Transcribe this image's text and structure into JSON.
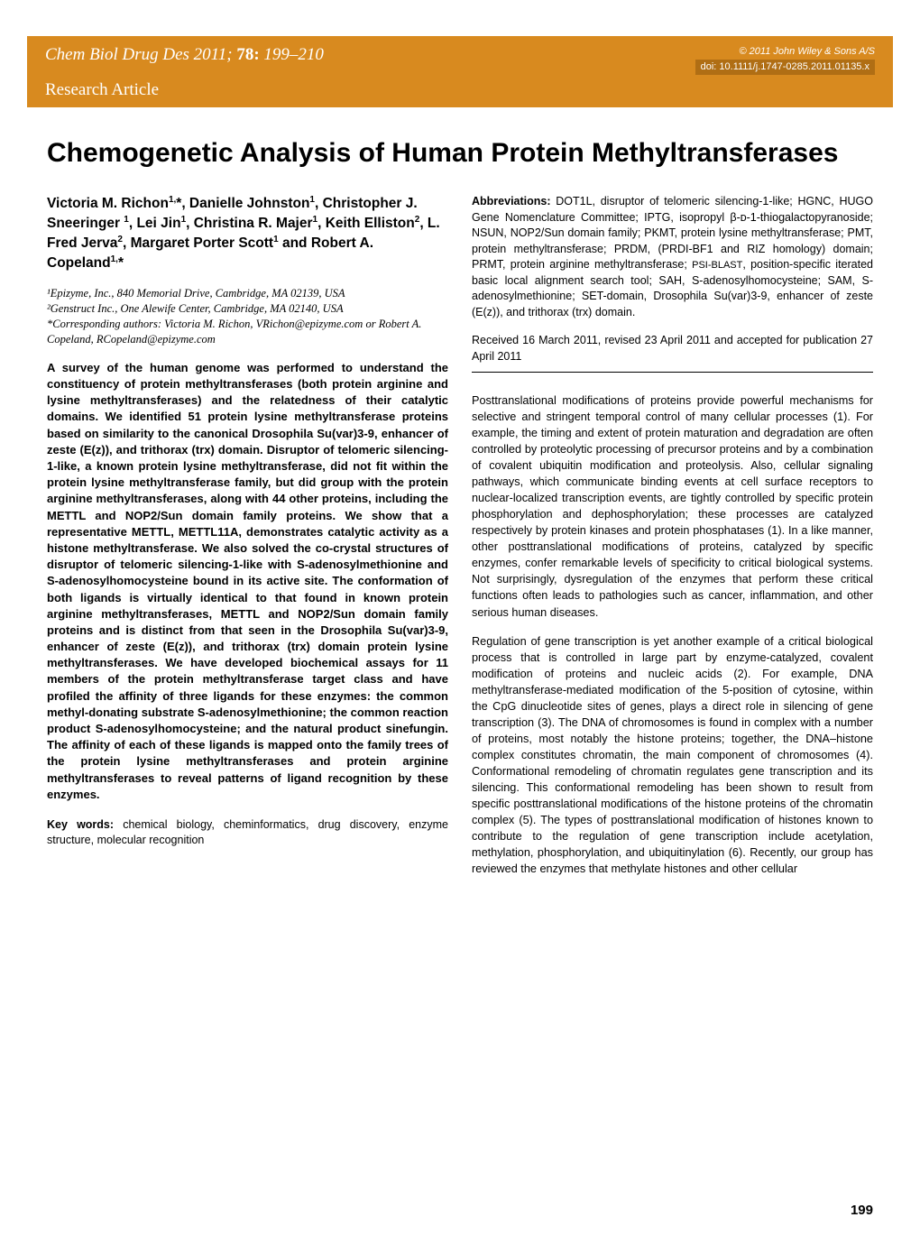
{
  "header": {
    "journal": "Chem Biol Drug Des 2011; ",
    "volume": "78:",
    "pages": " 199–210",
    "copyright": "© 2011 John Wiley & Sons A/S",
    "doi": "doi: 10.1111/j.1747-0285.2011.01135.x",
    "article_type": "Research Article",
    "band_color": "#d88a1f",
    "doi_bg_color": "#b06e14"
  },
  "title": "Chemogenetic Analysis of Human Protein Methyltransferases",
  "authors_html": "Victoria M. Richon<sup>1,</sup>*, Danielle Johnston<sup>1</sup>, Christopher J. Sneeringer <sup>1</sup>, Lei Jin<sup>1</sup>, Christina R. Majer<sup>1</sup>, Keith Elliston<sup>2</sup>, L. Fred Jerva<sup>2</sup>, Margaret Porter Scott<sup>1</sup> and Robert A. Copeland<sup>1,</sup>*",
  "affiliations": [
    "¹Epizyme, Inc., 840 Memorial Drive, Cambridge, MA 02139, USA",
    "²Genstruct Inc., One Alewife Center, Cambridge, MA 02140, USA",
    "*Corresponding authors: Victoria M. Richon, VRichon@epizyme.com or Robert A. Copeland, RCopeland@epizyme.com"
  ],
  "abstract": "A survey of the human genome was performed to understand the constituency of protein methyltransferases (both protein arginine and lysine methyltransferases) and the relatedness of their catalytic domains. We identified 51 protein lysine methyltransferase proteins based on similarity to the canonical Drosophila Su(var)3-9, enhancer of zeste (E(z)), and trithorax (trx) domain. Disruptor of telomeric silencing-1-like, a known protein lysine methyltransferase, did not fit within the protein lysine methyltransferase family, but did group with the protein arginine methyltransferases, along with 44 other proteins, including the METTL and NOP2/Sun domain family proteins. We show that a representative METTL, METTL11A, demonstrates catalytic activity as a histone methyltransferase. We also solved the co-crystal structures of disruptor of telomeric silencing-1-like with S-adenosylmethionine and S-adenosylhomocysteine bound in its active site. The conformation of both ligands is virtually identical to that found in known protein arginine methyltransferases, METTL and NOP2/Sun domain family proteins and is distinct from that seen in the Drosophila Su(var)3-9, enhancer of zeste (E(z)), and trithorax (trx) domain protein lysine methyltransferases. We have developed biochemical assays for 11 members of the protein methyltransferase target class and have profiled the affinity of three ligands for these enzymes: the common methyl-donating substrate S-adenosylmethionine; the common reaction product S-adenosylhomocysteine; and the natural product sinefungin. The affinity of each of these ligands is mapped onto the family trees of the protein lysine methyltransferases and protein arginine methyltransferases to reveal patterns of ligand recognition by these enzymes.",
  "keywords": {
    "label": "Key words:",
    "text": " chemical biology, cheminformatics, drug discovery, enzyme structure, molecular recognition"
  },
  "abbreviations": {
    "label": "Abbreviations:",
    "text": " DOT1L, disruptor of telomeric silencing-1-like; HGNC, HUGO Gene Nomenclature Committee; IPTG, isopropyl β-ᴅ-1-thiogalactopyranoside; NSUN, NOP2/Sun domain family; PKMT, protein lysine methyltransferase; PMT, protein methyltransferase; PRDM, (PRDI-BF1 and RIZ homology) domain; PRMT, protein arginine methyltransferase; PSI-BLAST, position-specific iterated basic local alignment search tool; SAH, S-adenosylhomocysteine; SAM, S-adenosylmethionine; SET-domain, Drosophila Su(var)3-9, enhancer of zeste (E(z)), and trithorax (trx) domain."
  },
  "received": "Received 16 March 2011, revised 23 April 2011 and accepted for publication 27 April 2011",
  "body_paragraphs": [
    "Posttranslational modifications of proteins provide powerful mechanisms for selective and stringent temporal control of many cellular processes (1). For example, the timing and extent of protein maturation and degradation are often controlled by proteolytic processing of precursor proteins and by a combination of covalent ubiquitin modification and proteolysis. Also, cellular signaling pathways, which communicate binding events at cell surface receptors to nuclear-localized transcription events, are tightly controlled by specific protein phosphorylation and dephosphorylation; these processes are catalyzed respectively by protein kinases and protein phosphatases (1). In a like manner, other posttranslational modifications of proteins, catalyzed by specific enzymes, confer remarkable levels of specificity to critical biological systems. Not surprisingly, dysregulation of the enzymes that perform these critical functions often leads to pathologies such as cancer, inflammation, and other serious human diseases.",
    "Regulation of gene transcription is yet another example of a critical biological process that is controlled in large part by enzyme-catalyzed, covalent modification of proteins and nucleic acids (2). For example, DNA methyltransferase-mediated modification of the 5-position of cytosine, within the CpG dinucleotide sites of genes, plays a direct role in silencing of gene transcription (3). The DNA of chromosomes is found in complex with a number of proteins, most notably the histone proteins; together, the DNA–histone complex constitutes chromatin, the main component of chromosomes (4). Conformational remodeling of chromatin regulates gene transcription and its silencing. This conformational remodeling has been shown to result from specific posttranslational modifications of the histone proteins of the chromatin complex (5). The types of posttranslational modification of histones known to contribute to the regulation of gene transcription include acetylation, methylation, phosphorylation, and ubiquitinylation (6). Recently, our group has reviewed the enzymes that methylate histones and other cellular"
  ],
  "page_number": "199",
  "typography": {
    "title_fontsize": 30,
    "body_fontsize": 12.7,
    "author_fontsize": 15.5,
    "background_color": "#ffffff",
    "text_color": "#000000"
  }
}
